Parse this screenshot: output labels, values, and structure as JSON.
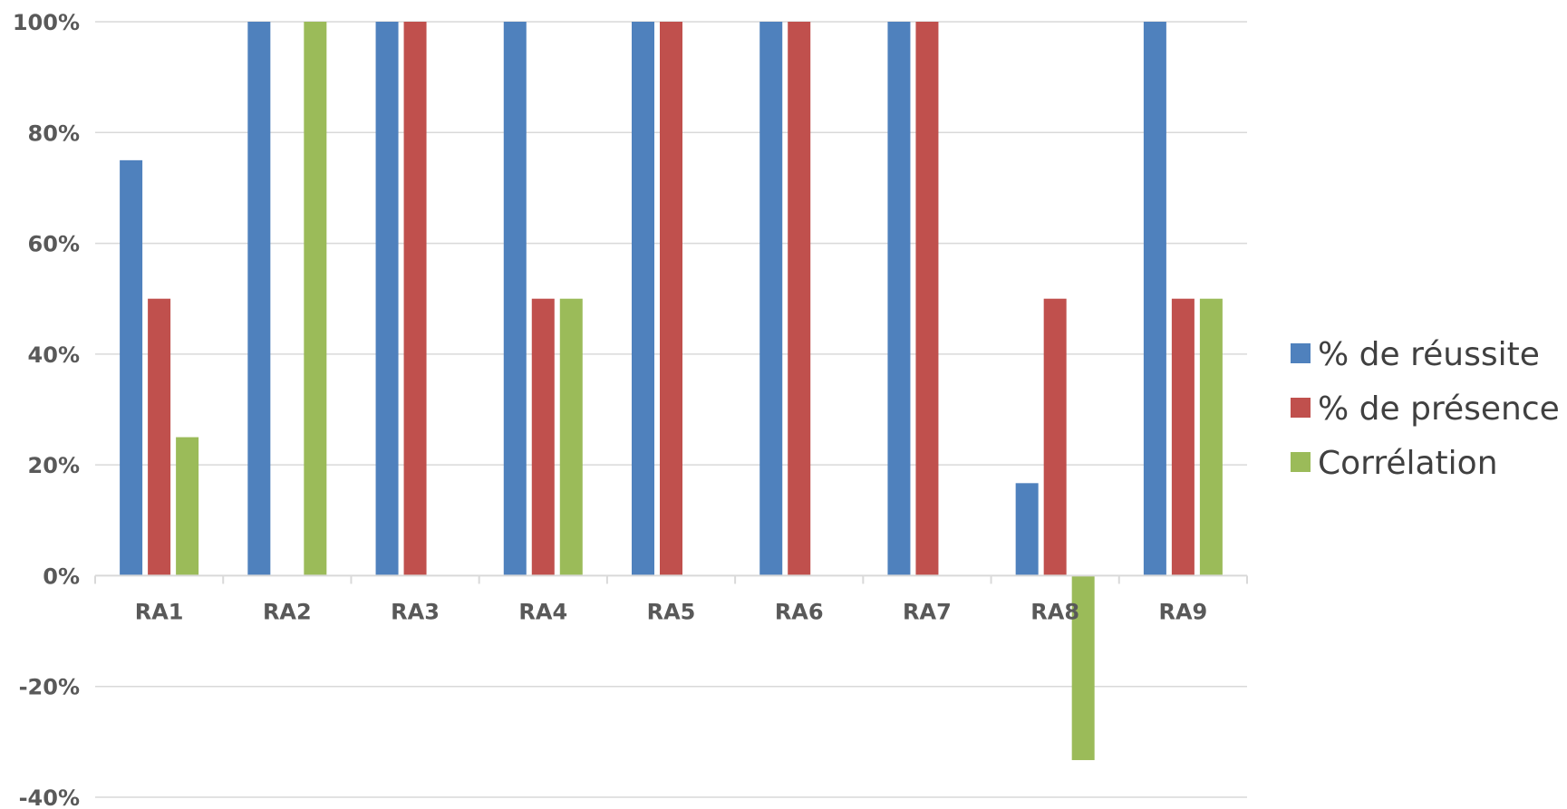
{
  "chart_data": {
    "type": "bar",
    "title": "",
    "xlabel": "",
    "ylabel": "",
    "categories": [
      "RA1",
      "RA2",
      "RA3",
      "RA4",
      "RA5",
      "RA6",
      "RA7",
      "RA8",
      "RA9"
    ],
    "series": [
      {
        "name": "% de réussite",
        "color": "#4f81bd",
        "values": [
          75,
          100,
          100,
          100,
          100,
          100,
          100,
          16.7,
          100
        ]
      },
      {
        "name": "% de présence",
        "color": "#c0504d",
        "values": [
          50,
          0,
          100,
          50,
          100,
          100,
          100,
          50,
          50
        ]
      },
      {
        "name": "Corrélation",
        "color": "#9bbb59",
        "values": [
          25,
          100,
          0,
          50,
          0,
          0,
          0,
          -33.3,
          50
        ]
      }
    ],
    "ylim": [
      -40,
      100
    ],
    "yticks": [
      {
        "value": 100,
        "label": "100%"
      },
      {
        "value": 80,
        "label": "80%"
      },
      {
        "value": 60,
        "label": "60%"
      },
      {
        "value": 40,
        "label": "40%"
      },
      {
        "value": 20,
        "label": "20%"
      },
      {
        "value": 0,
        "label": "0%"
      },
      {
        "value": -20,
        "label": "-20%"
      },
      {
        "value": -40,
        "label": "-40%"
      }
    ],
    "grid": true,
    "legend_position": "right"
  }
}
